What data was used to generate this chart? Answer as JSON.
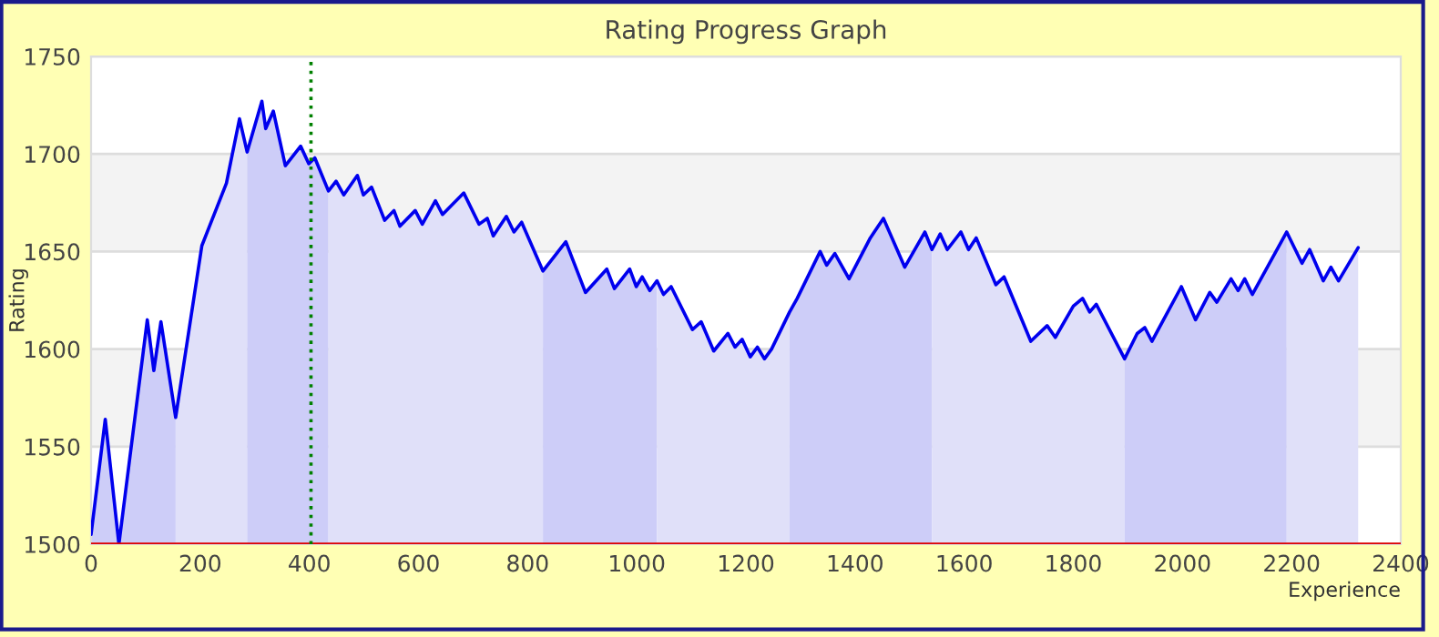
{
  "chart_data": {
    "type": "area",
    "title": "Rating Progress Graph",
    "xlabel": "Experience",
    "ylabel": "Rating",
    "xlim": [
      0,
      2400
    ],
    "xticks": [
      0,
      200,
      400,
      600,
      800,
      1000,
      1200,
      1400,
      1600,
      1800,
      2000,
      2200,
      2400
    ],
    "ylim": [
      1500,
      1750
    ],
    "yticks": [
      1500,
      1550,
      1600,
      1650,
      1700,
      1750
    ],
    "grid": "y",
    "marker": "none",
    "line_style": "solid",
    "series": [
      {
        "color": "#cdcdf8",
        "x": [
          0,
          26,
          51,
          103,
          115,
          128,
          155
        ],
        "values": [
          1505,
          1564,
          1500,
          1615,
          1589,
          1614,
          1565
        ]
      },
      {
        "color": "#e0e0f9",
        "x": [
          155,
          203,
          248,
          272,
          286
        ],
        "values": [
          1565,
          1653,
          1685,
          1718,
          1701
        ]
      },
      {
        "color": "#cdcdf8",
        "x": [
          286,
          313,
          320,
          334,
          356,
          384,
          399,
          410,
          435
        ],
        "values": [
          1701,
          1727,
          1713,
          1722,
          1694,
          1704,
          1695,
          1698,
          1681
        ]
      },
      {
        "color": "#e0e0f9",
        "x": [
          435,
          449,
          463,
          488,
          499,
          514,
          538,
          555,
          566,
          594,
          607,
          631,
          644,
          683,
          711,
          726,
          737,
          761,
          775,
          789,
          828
        ],
        "values": [
          1681,
          1686,
          1679,
          1689,
          1679,
          1683,
          1666,
          1671,
          1663,
          1671,
          1664,
          1676,
          1669,
          1680,
          1664,
          1667,
          1658,
          1668,
          1660,
          1665,
          1640
        ]
      },
      {
        "color": "#cdcdf8",
        "x": [
          828,
          870,
          906,
          945,
          959,
          987,
          999,
          1010,
          1024,
          1037
        ],
        "values": [
          1640,
          1655,
          1629,
          1641,
          1631,
          1641,
          1632,
          1637,
          1630,
          1635
        ]
      },
      {
        "color": "#e0e0f9",
        "x": [
          1037,
          1049,
          1063,
          1102,
          1118,
          1141,
          1167,
          1180,
          1193,
          1208,
          1221,
          1234,
          1247,
          1280
        ],
        "values": [
          1635,
          1628,
          1632,
          1610,
          1614,
          1599,
          1608,
          1601,
          1605,
          1596,
          1601,
          1595,
          1600,
          1619
        ]
      },
      {
        "color": "#cdcdf8",
        "x": [
          1280,
          1294,
          1336,
          1348,
          1363,
          1389,
          1428,
          1452,
          1491,
          1528,
          1541
        ],
        "values": [
          1619,
          1626,
          1650,
          1643,
          1649,
          1636,
          1657,
          1667,
          1642,
          1660,
          1651
        ]
      },
      {
        "color": "#e0e0f9",
        "x": [
          1541,
          1556,
          1569,
          1594,
          1608,
          1622,
          1658,
          1673,
          1722,
          1752,
          1767,
          1800,
          1817,
          1830,
          1842,
          1894
        ],
        "values": [
          1651,
          1659,
          1651,
          1660,
          1651,
          1657,
          1633,
          1637,
          1604,
          1612,
          1606,
          1622,
          1626,
          1619,
          1623,
          1595
        ]
      },
      {
        "color": "#cdcdf8",
        "x": [
          1894,
          1917,
          1931,
          1944,
          1998,
          2024,
          2050,
          2063,
          2089,
          2102,
          2114,
          2128,
          2191
        ],
        "values": [
          1595,
          1608,
          1611,
          1604,
          1632,
          1615,
          1629,
          1624,
          1636,
          1630,
          1636,
          1628,
          1660
        ]
      },
      {
        "color": "#e0e0f9",
        "x": [
          2191,
          2219,
          2233,
          2258,
          2272,
          2286,
          2322
        ],
        "values": [
          1660,
          1644,
          1651,
          1635,
          1642,
          1635,
          1652
        ]
      },
      {
        "type": "line",
        "color": "#0000ee",
        "x": [
          0,
          26,
          51,
          103,
          115,
          128,
          155,
          203,
          248,
          272,
          286,
          313,
          320,
          334,
          356,
          384,
          399,
          410,
          435,
          449,
          463,
          488,
          499,
          514,
          538,
          555,
          566,
          594,
          607,
          631,
          644,
          683,
          711,
          726,
          737,
          761,
          775,
          789,
          828,
          870,
          906,
          945,
          959,
          987,
          999,
          1010,
          1024,
          1037,
          1049,
          1063,
          1102,
          1118,
          1141,
          1167,
          1180,
          1193,
          1208,
          1221,
          1234,
          1247,
          1280,
          1294,
          1336,
          1348,
          1363,
          1389,
          1428,
          1452,
          1491,
          1528,
          1541,
          1556,
          1569,
          1594,
          1608,
          1622,
          1658,
          1673,
          1722,
          1752,
          1767,
          1800,
          1817,
          1830,
          1842,
          1894,
          1917,
          1931,
          1944,
          1998,
          2024,
          2050,
          2063,
          2089,
          2102,
          2114,
          2128,
          2191,
          2219,
          2233,
          2258,
          2272,
          2286,
          2322
        ],
        "values": [
          1505,
          1564,
          1500,
          1615,
          1589,
          1614,
          1565,
          1653,
          1685,
          1718,
          1701,
          1727,
          1713,
          1722,
          1694,
          1704,
          1695,
          1698,
          1681,
          1686,
          1679,
          1689,
          1679,
          1683,
          1666,
          1671,
          1663,
          1671,
          1664,
          1676,
          1669,
          1680,
          1664,
          1667,
          1658,
          1668,
          1660,
          1665,
          1640,
          1655,
          1629,
          1641,
          1631,
          1641,
          1632,
          1637,
          1630,
          1635,
          1628,
          1632,
          1610,
          1614,
          1599,
          1608,
          1601,
          1605,
          1596,
          1601,
          1595,
          1600,
          1619,
          1626,
          1650,
          1643,
          1649,
          1636,
          1657,
          1667,
          1642,
          1660,
          1651,
          1659,
          1651,
          1660,
          1651,
          1657,
          1633,
          1637,
          1604,
          1612,
          1606,
          1622,
          1626,
          1619,
          1623,
          1595,
          1608,
          1611,
          1604,
          1632,
          1615,
          1629,
          1624,
          1636,
          1630,
          1636,
          1628,
          1660,
          1644,
          1651,
          1635,
          1642,
          1635,
          1652
        ]
      }
    ],
    "ref_lines": [
      {
        "axis": "y",
        "value": 1500,
        "color": "#dd0000",
        "line_style": "solid"
      },
      {
        "axis": "x",
        "value": 403,
        "color": "#008000",
        "line_style": "dotted"
      }
    ],
    "legend": false
  }
}
